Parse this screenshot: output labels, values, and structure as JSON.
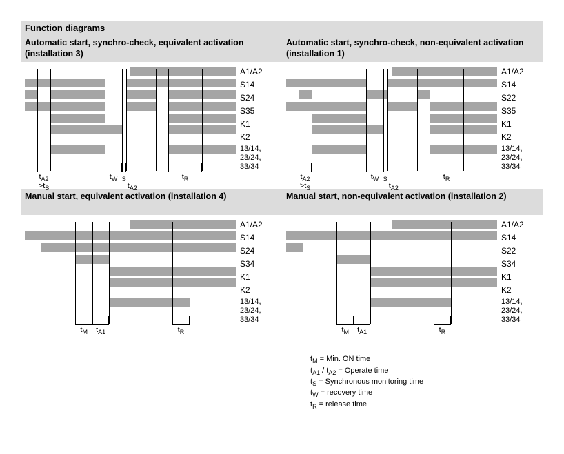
{
  "mainTitle": "Function diagrams",
  "barColor": "#a5a5a5",
  "headerBg": "#dcdcdc",
  "panels": [
    {
      "id": "p1",
      "title": "Automatic start, synchro-check, equivalent activation (installation 3)",
      "rowLabels": [
        "A1/A2",
        "S14",
        "S24",
        "S35",
        "K1",
        "K2",
        "13/14, 23/24, 33/34"
      ],
      "segments": [
        [
          [
            50,
            100
          ]
        ],
        [
          [
            0,
            38
          ],
          [
            48,
            100
          ]
        ],
        [
          [
            0,
            6
          ],
          [
            12,
            38
          ],
          [
            48,
            62
          ],
          [
            68,
            100
          ]
        ],
        [
          [
            0,
            38
          ],
          [
            48,
            62
          ],
          [
            68,
            100
          ]
        ],
        [
          [
            12,
            38
          ],
          [
            68,
            100
          ]
        ],
        [
          [
            12,
            46
          ],
          [
            68,
            100
          ]
        ],
        [
          [
            12,
            38
          ],
          [
            68,
            100
          ]
        ]
      ],
      "vlines": [
        6,
        12,
        38,
        46,
        48,
        62,
        68,
        84
      ],
      "markers": [
        {
          "from": 6,
          "to": 12,
          "label": "t",
          "sub": "A2",
          "label2": ">t",
          "sub2": "S"
        },
        {
          "from": 38,
          "to": 46,
          "label": "t",
          "sub": "W"
        },
        {
          "from": 46,
          "to": 48,
          "label": "<t",
          "sub": "S",
          "label2": "t",
          "sub2": "A2",
          "shift": 12
        },
        {
          "from": 68,
          "to": 84,
          "label": "t",
          "sub": "R"
        }
      ]
    },
    {
      "id": "p2",
      "title": "Automatic start, synchro-check, non-equivalent activation (installation 1)",
      "rowLabels": [
        "A1/A2",
        "S14",
        "S22",
        "S35",
        "K1",
        "K2",
        "13/14, 23/24, 33/34"
      ],
      "segments": [
        [
          [
            50,
            100
          ]
        ],
        [
          [
            0,
            38
          ],
          [
            48,
            100
          ]
        ],
        [
          [
            6,
            12
          ],
          [
            38,
            48
          ],
          [
            62,
            68
          ]
        ],
        [
          [
            0,
            38
          ],
          [
            48,
            62
          ],
          [
            68,
            100
          ]
        ],
        [
          [
            12,
            38
          ],
          [
            68,
            100
          ]
        ],
        [
          [
            12,
            46
          ],
          [
            68,
            100
          ]
        ],
        [
          [
            12,
            38
          ],
          [
            68,
            100
          ]
        ]
      ],
      "vlines": [
        6,
        12,
        38,
        46,
        48,
        62,
        68,
        84
      ],
      "markers": [
        {
          "from": 6,
          "to": 12,
          "label": "t",
          "sub": "A2",
          "label2": ">t",
          "sub2": "S"
        },
        {
          "from": 38,
          "to": 46,
          "label": "t",
          "sub": "W"
        },
        {
          "from": 46,
          "to": 48,
          "label": "<t",
          "sub": "S",
          "label2": "t",
          "sub2": "A2",
          "shift": 12
        },
        {
          "from": 68,
          "to": 84,
          "label": "t",
          "sub": "R"
        }
      ]
    },
    {
      "id": "p3",
      "title": "Manual start, equivalent activation (installation 4)",
      "rowLabels": [
        "A1/A2",
        "S14",
        "S24",
        "S34",
        "K1",
        "K2",
        "13/14, 23/24, 33/34"
      ],
      "segments": [
        [
          [
            50,
            100
          ]
        ],
        [
          [
            0,
            100
          ]
        ],
        [
          [
            8,
            100
          ]
        ],
        [
          [
            24,
            40
          ]
        ],
        [
          [
            40,
            100
          ]
        ],
        [
          [
            40,
            100
          ]
        ],
        [
          [
            40,
            78
          ]
        ]
      ],
      "vlines": [
        24,
        32,
        40,
        70,
        78
      ],
      "markers": [
        {
          "from": 24,
          "to": 32,
          "label": "t",
          "sub": "M"
        },
        {
          "from": 32,
          "to": 40,
          "label": "t",
          "sub": "A1"
        },
        {
          "from": 70,
          "to": 78,
          "label": "t",
          "sub": "R"
        }
      ]
    },
    {
      "id": "p4",
      "title": "Manual start, non-equivalent activation (installation 2)",
      "rowLabels": [
        "A1/A2",
        "S14",
        "S22",
        "S34",
        "K1",
        "K2",
        "13/14, 23/24, 33/34"
      ],
      "segments": [
        [
          [
            50,
            100
          ]
        ],
        [
          [
            0,
            100
          ]
        ],
        [
          [
            0,
            8
          ]
        ],
        [
          [
            24,
            40
          ]
        ],
        [
          [
            40,
            100
          ]
        ],
        [
          [
            40,
            100
          ]
        ],
        [
          [
            40,
            78
          ]
        ]
      ],
      "vlines": [
        24,
        32,
        40,
        70,
        78
      ],
      "markers": [
        {
          "from": 24,
          "to": 32,
          "label": "t",
          "sub": "M"
        },
        {
          "from": 32,
          "to": 40,
          "label": "t",
          "sub": "A1"
        },
        {
          "from": 70,
          "to": 78,
          "label": "t",
          "sub": "R"
        }
      ]
    }
  ],
  "legend": {
    "lines": [
      {
        "sym": "t",
        "sub": "M",
        "text": " = Min. ON time"
      },
      {
        "sym": "t",
        "sub": "A1",
        "sym2": " / t",
        "sub2": "A2",
        "text": " = Operate time"
      },
      {
        "sym": "t",
        "sub": "S",
        "text": " = Synchronous monitoring time"
      },
      {
        "sym": "t",
        "sub": "W",
        "text": " = recovery time"
      },
      {
        "sym": "t",
        "sub": "R",
        "text": " = release time"
      }
    ]
  }
}
